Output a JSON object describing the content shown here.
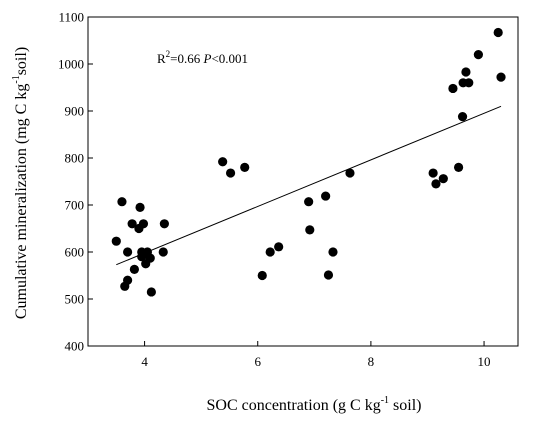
{
  "chart_data": {
    "type": "scatter",
    "xlabel": {
      "prefix": "SOC concentration (g C kg",
      "sup": "-1",
      "suffix": " soil)"
    },
    "ylabel": {
      "prefix": "Cumulative mineralization (mg C kg",
      "sup": "-1",
      "suffix": "soil)"
    },
    "xlim": [
      3.0,
      10.6
    ],
    "ylim": [
      400,
      1100
    ],
    "xticks": [
      4,
      6,
      8,
      10
    ],
    "yticks": [
      400,
      500,
      600,
      700,
      800,
      900,
      1000,
      1100
    ],
    "grid": false,
    "annotation": {
      "r2_label": "R",
      "r2_sup": "2",
      "r2_value": "=0.66 ",
      "p_label": "P",
      "p_value": "<0.001"
    },
    "trendline": {
      "x": [
        3.5,
        10.3
      ],
      "y": [
        573,
        910
      ]
    },
    "points": [
      {
        "x": 3.5,
        "y": 623
      },
      {
        "x": 3.6,
        "y": 707
      },
      {
        "x": 3.65,
        "y": 527
      },
      {
        "x": 3.7,
        "y": 540
      },
      {
        "x": 3.7,
        "y": 600
      },
      {
        "x": 3.78,
        "y": 660
      },
      {
        "x": 3.82,
        "y": 563
      },
      {
        "x": 3.9,
        "y": 650
      },
      {
        "x": 3.92,
        "y": 695
      },
      {
        "x": 3.95,
        "y": 590
      },
      {
        "x": 3.95,
        "y": 600
      },
      {
        "x": 3.98,
        "y": 660
      },
      {
        "x": 4.02,
        "y": 575
      },
      {
        "x": 4.05,
        "y": 600
      },
      {
        "x": 4.1,
        "y": 587
      },
      {
        "x": 4.12,
        "y": 515
      },
      {
        "x": 4.33,
        "y": 600
      },
      {
        "x": 4.35,
        "y": 660
      },
      {
        "x": 5.38,
        "y": 792
      },
      {
        "x": 5.52,
        "y": 768
      },
      {
        "x": 5.77,
        "y": 780
      },
      {
        "x": 6.08,
        "y": 550
      },
      {
        "x": 6.22,
        "y": 600
      },
      {
        "x": 6.37,
        "y": 611
      },
      {
        "x": 6.9,
        "y": 707
      },
      {
        "x": 6.92,
        "y": 647
      },
      {
        "x": 7.2,
        "y": 719
      },
      {
        "x": 7.25,
        "y": 551
      },
      {
        "x": 7.33,
        "y": 600
      },
      {
        "x": 7.63,
        "y": 768
      },
      {
        "x": 9.1,
        "y": 768
      },
      {
        "x": 9.15,
        "y": 745
      },
      {
        "x": 9.28,
        "y": 756
      },
      {
        "x": 9.45,
        "y": 948
      },
      {
        "x": 9.55,
        "y": 780
      },
      {
        "x": 9.62,
        "y": 888
      },
      {
        "x": 9.63,
        "y": 960
      },
      {
        "x": 9.68,
        "y": 983
      },
      {
        "x": 9.73,
        "y": 960
      },
      {
        "x": 9.9,
        "y": 1020
      },
      {
        "x": 10.25,
        "y": 1067
      },
      {
        "x": 10.3,
        "y": 972
      }
    ]
  }
}
